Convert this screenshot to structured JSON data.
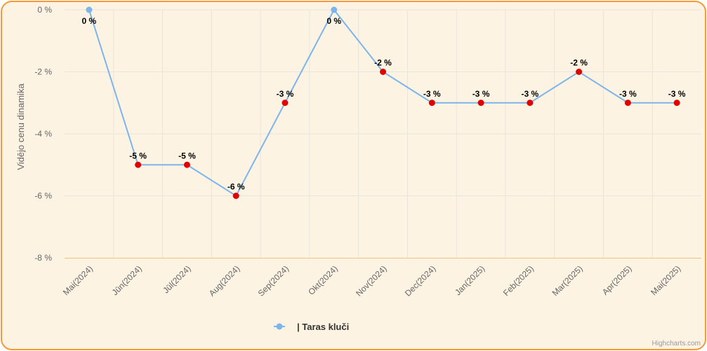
{
  "chart_data": {
    "type": "line",
    "categories": [
      "Mai(2024)",
      "Jūn(2024)",
      "Jūl(2024)",
      "Aug(2024)",
      "Sep(2024)",
      "Okt(2024)",
      "Nov(2024)",
      "Dec(2024)",
      "Jan(2025)",
      "Feb(2025)",
      "Mar(2025)",
      "Apr(2025)",
      "Mai(2025)"
    ],
    "series": [
      {
        "name": "| Taras kluči",
        "values": [
          0,
          -5,
          -5,
          -6,
          -3,
          0,
          -2,
          -3,
          -3,
          -3,
          -2,
          -3,
          -3
        ],
        "labels": [
          "0 %",
          "-5 %",
          "-5 %",
          "-6 %",
          "-3 %",
          "0 %",
          "-2 %",
          "-3 %",
          "-3 %",
          "-3 %",
          "-2 %",
          "-3 %",
          "-3 %"
        ]
      }
    ],
    "ylabel": "Vidējo cenu dinamika",
    "ylim": [
      -8,
      0
    ],
    "yticks": [
      0,
      -2,
      -4,
      -6,
      -8
    ],
    "ytick_labels": [
      "0 %",
      "-2 %",
      "-4 %",
      "-6 %",
      "-8 %"
    ],
    "grid": true,
    "legend": "bottom-center",
    "credits": "Highcharts.com",
    "colors": {
      "line": "#7cb5ec",
      "point_negative": "#e00000",
      "point_zero": "#7cb5ec",
      "frame_border": "#f39b3a",
      "frame_background": "#fdf3e3",
      "axis_line": "#f3c27a"
    }
  }
}
